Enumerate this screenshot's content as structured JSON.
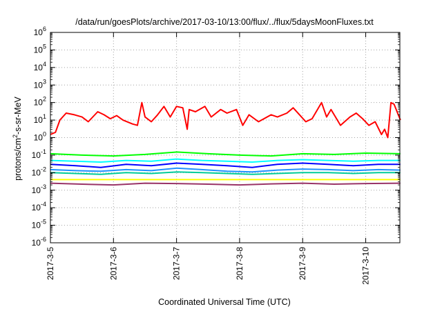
{
  "chart_data": {
    "type": "line",
    "title": "/data/run/goesPlots/archive/2017-03-10/13:00/flux/../flux/5daysMoonFluxes.txt",
    "xlabel": "Coordinated Universal Time (UTC)",
    "ylabel_parts": [
      "protons/cm",
      "2",
      "-s-sr-MeV"
    ],
    "y_scale": "log",
    "ylim": [
      1e-06,
      1000000.0
    ],
    "xlim": [
      "2017-03-05",
      "2017-03-10 13:00"
    ],
    "grid": true,
    "legend": "none",
    "y_ticks": [
      {
        "base": "10",
        "exp": "-6"
      },
      {
        "base": "10",
        "exp": "-5"
      },
      {
        "base": "10",
        "exp": "-4"
      },
      {
        "base": "10",
        "exp": "-3"
      },
      {
        "base": "10",
        "exp": "-2"
      },
      {
        "base": "10",
        "exp": "-1"
      },
      {
        "base": "10",
        "exp": "0"
      },
      {
        "base": "10",
        "exp": "1"
      },
      {
        "base": "10",
        "exp": "2"
      },
      {
        "base": "10",
        "exp": "3"
      },
      {
        "base": "10",
        "exp": "4"
      },
      {
        "base": "10",
        "exp": "5"
      },
      {
        "base": "10",
        "exp": "6"
      }
    ],
    "x_ticks": [
      "2017-3-5",
      "2017-3-6",
      "2017-3-7",
      "2017-3-8",
      "2017-3-9",
      "2017-3-10"
    ],
    "x_ticks_day": [
      0,
      1,
      2,
      3,
      4,
      5
    ],
    "series": [
      {
        "color": "#ff0000",
        "x": [
          0,
          0.08,
          0.15,
          0.25,
          0.38,
          0.5,
          0.6,
          0.75,
          0.85,
          0.95,
          1.05,
          1.15,
          1.3,
          1.38,
          1.45,
          1.5,
          1.6,
          1.7,
          1.8,
          1.9,
          2.0,
          2.1,
          2.17,
          2.2,
          2.3,
          2.45,
          2.55,
          2.7,
          2.8,
          2.95,
          3.05,
          3.15,
          3.3,
          3.5,
          3.6,
          3.75,
          3.85,
          3.95,
          4.05,
          4.15,
          4.3,
          4.38,
          4.45,
          4.55,
          4.6,
          4.75,
          4.85,
          4.95,
          5.05,
          5.15,
          5.25,
          5.3,
          5.35,
          5.4,
          5.45,
          5.55
        ],
        "y": [
          1.5,
          2,
          10,
          25,
          20,
          15,
          8,
          30,
          20,
          12,
          18,
          10,
          6,
          5,
          100,
          15,
          8,
          20,
          60,
          15,
          60,
          50,
          3,
          40,
          30,
          60,
          15,
          40,
          25,
          40,
          5,
          20,
          8,
          20,
          15,
          25,
          50,
          20,
          8,
          12,
          100,
          15,
          40,
          10,
          5,
          15,
          25,
          12,
          5,
          8,
          1.5,
          3,
          1,
          100,
          80,
          10
        ],
        "labels": []
      },
      {
        "color": "#00ff00",
        "x": [
          0,
          0.5,
          1.0,
          1.5,
          2.0,
          2.5,
          3.0,
          3.5,
          4.0,
          4.5,
          5.0,
          5.55
        ],
        "y": [
          0.12,
          0.1,
          0.09,
          0.11,
          0.15,
          0.12,
          0.1,
          0.09,
          0.12,
          0.11,
          0.13,
          0.12
        ],
        "labels": []
      },
      {
        "color": "#00ffff",
        "x": [
          0,
          0.4,
          0.8,
          1.2,
          1.6,
          2.0,
          2.4,
          2.8,
          3.2,
          3.6,
          4.0,
          4.4,
          4.8,
          5.2,
          5.55
        ],
        "y": [
          0.05,
          0.045,
          0.04,
          0.05,
          0.045,
          0.06,
          0.05,
          0.045,
          0.04,
          0.05,
          0.055,
          0.05,
          0.045,
          0.05,
          0.05
        ],
        "labels": []
      },
      {
        "color": "#0000ff",
        "x": [
          0,
          0.4,
          0.8,
          1.2,
          1.6,
          2.0,
          2.4,
          2.8,
          3.2,
          3.6,
          4.0,
          4.4,
          4.8,
          5.2,
          5.55
        ],
        "y": [
          0.03,
          0.025,
          0.02,
          0.03,
          0.025,
          0.035,
          0.03,
          0.025,
          0.02,
          0.03,
          0.035,
          0.03,
          0.025,
          0.03,
          0.03
        ],
        "labels": []
      },
      {
        "color": "#1e90ff",
        "x": [
          0,
          0.4,
          0.8,
          1.2,
          1.6,
          2.0,
          2.4,
          2.8,
          3.2,
          3.6,
          4.0,
          4.4,
          4.8,
          5.2,
          5.55
        ],
        "y": [
          0.015,
          0.013,
          0.012,
          0.015,
          0.013,
          0.018,
          0.015,
          0.012,
          0.011,
          0.014,
          0.016,
          0.015,
          0.013,
          0.015,
          0.014
        ],
        "labels": []
      },
      {
        "color": "#00cc99",
        "x": [
          0,
          0.4,
          0.8,
          1.2,
          1.6,
          2.0,
          2.4,
          2.8,
          3.2,
          3.6,
          4.0,
          4.4,
          4.8,
          5.2,
          5.55
        ],
        "y": [
          0.01,
          0.009,
          0.008,
          0.01,
          0.009,
          0.011,
          0.01,
          0.009,
          0.008,
          0.009,
          0.01,
          0.01,
          0.009,
          0.01,
          0.01
        ],
        "labels": []
      },
      {
        "color": "#ffff00",
        "x": [
          0,
          5.55
        ],
        "y": [
          0.004,
          0.004
        ],
        "labels": []
      },
      {
        "color": "#993366",
        "x": [
          0,
          0.5,
          1.0,
          1.5,
          2.0,
          2.5,
          3.0,
          3.5,
          4.0,
          4.5,
          5.0,
          5.55
        ],
        "y": [
          0.0025,
          0.0022,
          0.002,
          0.0025,
          0.0024,
          0.0022,
          0.002,
          0.0023,
          0.0025,
          0.0022,
          0.0024,
          0.0025
        ],
        "labels": []
      }
    ]
  }
}
